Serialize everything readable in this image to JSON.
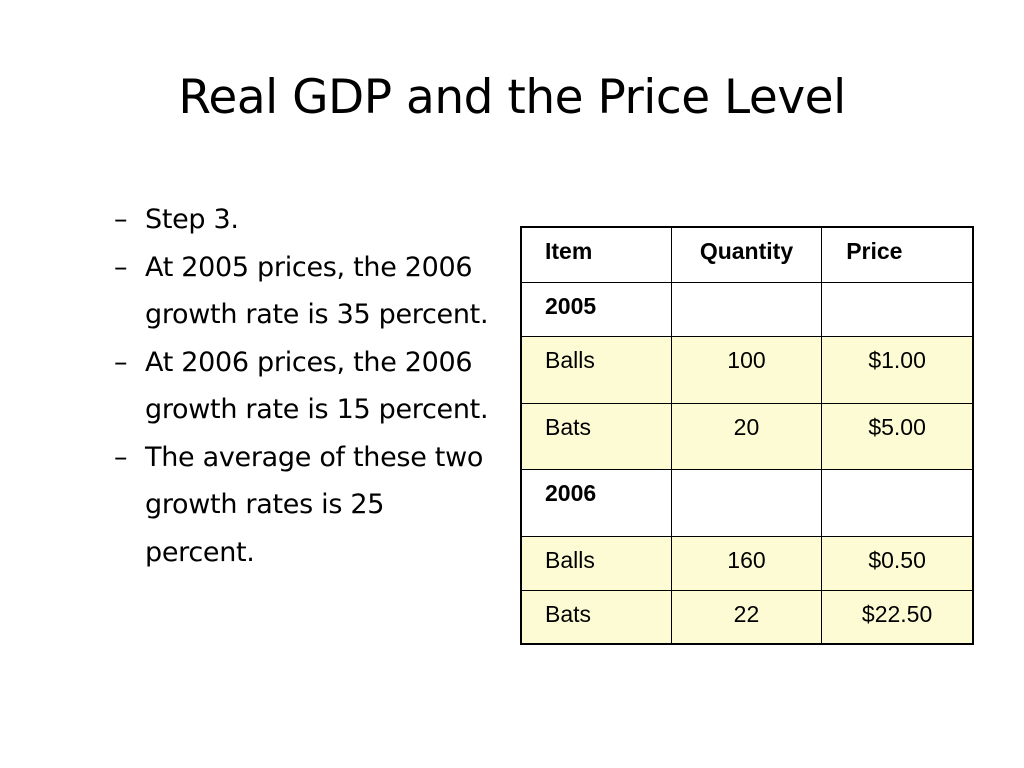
{
  "slide": {
    "title": "Real GDP and the Price Level",
    "bullets": [
      {
        "dash": "–",
        "text": "Step 3."
      },
      {
        "dash": "–",
        "text": "At 2005 prices, the 2006 growth rate is 35 percent."
      },
      {
        "dash": "–",
        "text": "At 2006 prices, the 2006 growth rate is 15 percent."
      },
      {
        "dash": "–",
        "text": "The average of these two growth rates is 25 percent."
      }
    ]
  },
  "table": {
    "headers": [
      "Item",
      "Quantity",
      "Price"
    ],
    "year_2005": "2005",
    "rows_2005": [
      {
        "item": "Balls",
        "quantity": "100",
        "price": "$1.00"
      },
      {
        "item": "Bats",
        "quantity": "20",
        "price": "$5.00"
      }
    ],
    "year_2006": "2006",
    "rows_2006": [
      {
        "item": "Balls",
        "quantity": "160",
        "price": "$0.50"
      },
      {
        "item": "Bats",
        "quantity": "22",
        "price": "$22.50"
      }
    ]
  },
  "colors": {
    "row_highlight": "#fdfbd3",
    "border": "#000000"
  }
}
